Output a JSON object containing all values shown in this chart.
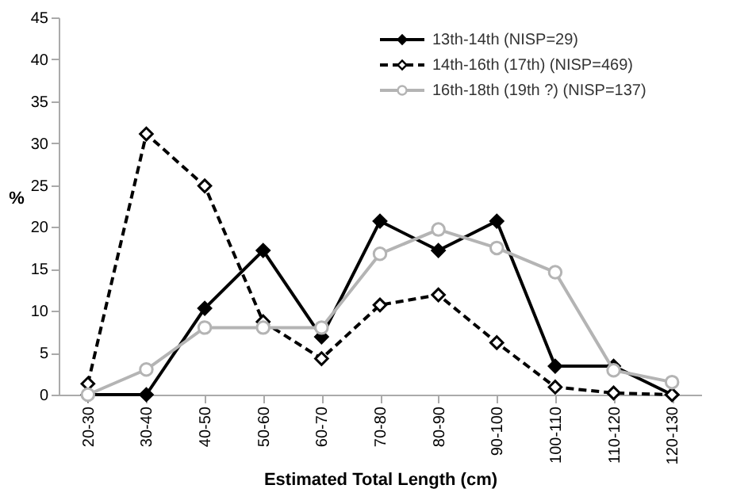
{
  "chart_data": {
    "type": "line",
    "xlabel": "Estimated Total Length (cm)",
    "ylabel": "%",
    "categories": [
      "20-30",
      "30-40",
      "40-50",
      "50-60",
      "60-70",
      "70-80",
      "80-90",
      "90-100",
      "100-110",
      "110-120",
      "120-130"
    ],
    "series": [
      {
        "name": "13th-14th (NISP=29)",
        "color": "#000000",
        "marker": "diamond",
        "line_style": "solid",
        "values": [
          0,
          0,
          10.3,
          17.2,
          6.9,
          20.7,
          17.2,
          20.7,
          3.4,
          3.4,
          0
        ]
      },
      {
        "name": "14th-16th (17th) (NISP=469)",
        "color": "#000000",
        "marker": "diamond",
        "line_style": "dashed",
        "values": [
          1.3,
          31.1,
          24.9,
          8.7,
          4.3,
          10.7,
          11.9,
          6.2,
          0.9,
          0.2,
          0
        ]
      },
      {
        "name": "16th-18th (19th ?) (NISP=137)",
        "color": "#b4b4b4",
        "marker": "circle",
        "line_style": "solid",
        "values": [
          0,
          3,
          8,
          8,
          8,
          16.8,
          19.7,
          17.5,
          14.6,
          2.9,
          1.5
        ]
      }
    ],
    "ylim": [
      0,
      45
    ],
    "yticks": [
      0,
      5,
      10,
      15,
      20,
      25,
      30,
      35,
      40,
      45
    ],
    "grid": false,
    "legend": "top right"
  }
}
